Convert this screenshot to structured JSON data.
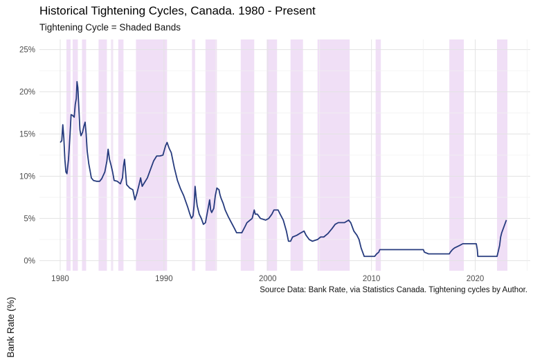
{
  "chart_data": {
    "type": "line",
    "title": "Historical Tightening Cycles, Canada. 1980 - Present",
    "subtitle": "Tightening Cycle = Shaded Bands",
    "caption": "Source Data: Bank Rate, via Statistics Canada. Tightening cycles by Author.",
    "xlabel": "",
    "ylabel": "Bank Rate (%)",
    "xlim": [
      1978.0,
      2025.3
    ],
    "ylim": [
      -1.2,
      26.2
    ],
    "x_ticks": [
      1980,
      1990,
      2000,
      2010,
      2020
    ],
    "x_tick_labels": [
      "1980",
      "1990",
      "2000",
      "2010",
      "2020"
    ],
    "y_ticks": [
      0,
      5,
      10,
      15,
      20,
      25
    ],
    "y_tick_labels": [
      "0%",
      "5%",
      "10%",
      "15%",
      "20%",
      "25%"
    ],
    "grid": true,
    "line_color": "#253a7d",
    "band_color": "#e9d2f2",
    "shaded_bands": [
      [
        1980.6,
        1981.0
      ],
      [
        1981.2,
        1981.7
      ],
      [
        1982.1,
        1982.5
      ],
      [
        1983.7,
        1984.5
      ],
      [
        1984.9,
        1985.1
      ],
      [
        1985.6,
        1986.1
      ],
      [
        1987.3,
        1990.3
      ],
      [
        1992.7,
        1993.0
      ],
      [
        1994.0,
        1995.1
      ],
      [
        1997.4,
        1998.7
      ],
      [
        1999.9,
        2000.9
      ],
      [
        2002.2,
        2003.4
      ],
      [
        2004.8,
        2007.9
      ],
      [
        2010.4,
        2010.9
      ],
      [
        2017.5,
        2018.9
      ],
      [
        2022.1,
        2023.1
      ]
    ],
    "series": [
      {
        "values": [
          [
            1980.0,
            14.0
          ],
          [
            1980.15,
            14.2
          ],
          [
            1980.25,
            16.1
          ],
          [
            1980.35,
            14.5
          ],
          [
            1980.45,
            12.0
          ],
          [
            1980.55,
            10.5
          ],
          [
            1980.65,
            10.3
          ],
          [
            1980.8,
            12.0
          ],
          [
            1980.95,
            15.0
          ],
          [
            1981.05,
            17.3
          ],
          [
            1981.2,
            17.2
          ],
          [
            1981.35,
            17.0
          ],
          [
            1981.45,
            18.5
          ],
          [
            1981.55,
            19.2
          ],
          [
            1981.62,
            21.2
          ],
          [
            1981.7,
            20.5
          ],
          [
            1981.8,
            18.0
          ],
          [
            1981.9,
            15.5
          ],
          [
            1982.0,
            14.8
          ],
          [
            1982.15,
            15.2
          ],
          [
            1982.3,
            16.0
          ],
          [
            1982.4,
            16.4
          ],
          [
            1982.5,
            15.0
          ],
          [
            1982.6,
            13.0
          ],
          [
            1982.75,
            11.5
          ],
          [
            1982.9,
            10.5
          ],
          [
            1983.0,
            9.8
          ],
          [
            1983.2,
            9.5
          ],
          [
            1983.5,
            9.4
          ],
          [
            1983.8,
            9.4
          ],
          [
            1984.0,
            9.7
          ],
          [
            1984.3,
            10.5
          ],
          [
            1984.5,
            11.8
          ],
          [
            1984.62,
            13.2
          ],
          [
            1984.75,
            12.0
          ],
          [
            1984.9,
            11.3
          ],
          [
            1985.05,
            10.5
          ],
          [
            1985.2,
            9.5
          ],
          [
            1985.5,
            9.4
          ],
          [
            1985.8,
            9.1
          ],
          [
            1986.0,
            9.8
          ],
          [
            1986.1,
            11.2
          ],
          [
            1986.2,
            12.0
          ],
          [
            1986.3,
            10.5
          ],
          [
            1986.4,
            9.0
          ],
          [
            1986.7,
            8.6
          ],
          [
            1987.0,
            8.4
          ],
          [
            1987.2,
            7.2
          ],
          [
            1987.4,
            8.0
          ],
          [
            1987.6,
            9.0
          ],
          [
            1987.75,
            9.8
          ],
          [
            1987.9,
            8.8
          ],
          [
            1988.1,
            9.2
          ],
          [
            1988.4,
            9.8
          ],
          [
            1988.7,
            10.8
          ],
          [
            1989.0,
            11.8
          ],
          [
            1989.3,
            12.4
          ],
          [
            1989.6,
            12.4
          ],
          [
            1989.9,
            12.5
          ],
          [
            1990.15,
            13.6
          ],
          [
            1990.3,
            14.0
          ],
          [
            1990.5,
            13.3
          ],
          [
            1990.7,
            12.8
          ],
          [
            1991.0,
            11.0
          ],
          [
            1991.3,
            9.5
          ],
          [
            1991.6,
            8.5
          ],
          [
            1991.9,
            7.7
          ],
          [
            1992.1,
            7.0
          ],
          [
            1992.3,
            6.3
          ],
          [
            1992.5,
            5.5
          ],
          [
            1992.65,
            5.0
          ],
          [
            1992.8,
            5.3
          ],
          [
            1992.9,
            6.5
          ],
          [
            1993.0,
            8.8
          ],
          [
            1993.1,
            7.5
          ],
          [
            1993.2,
            6.5
          ],
          [
            1993.4,
            5.5
          ],
          [
            1993.6,
            5.0
          ],
          [
            1993.8,
            4.3
          ],
          [
            1994.0,
            4.5
          ],
          [
            1994.15,
            5.5
          ],
          [
            1994.3,
            6.5
          ],
          [
            1994.4,
            7.2
          ],
          [
            1994.5,
            6.0
          ],
          [
            1994.6,
            5.7
          ],
          [
            1994.8,
            6.2
          ],
          [
            1994.95,
            7.7
          ],
          [
            1995.1,
            8.6
          ],
          [
            1995.3,
            8.4
          ],
          [
            1995.4,
            7.8
          ],
          [
            1995.5,
            7.4
          ],
          [
            1995.7,
            6.8
          ],
          [
            1995.9,
            6.0
          ],
          [
            1996.2,
            5.2
          ],
          [
            1996.5,
            4.5
          ],
          [
            1996.8,
            3.8
          ],
          [
            1997.0,
            3.3
          ],
          [
            1997.5,
            3.3
          ],
          [
            1997.8,
            4.0
          ],
          [
            1998.0,
            4.5
          ],
          [
            1998.5,
            5.0
          ],
          [
            1998.7,
            6.0
          ],
          [
            1998.8,
            5.5
          ],
          [
            1999.0,
            5.5
          ],
          [
            1999.3,
            5.0
          ],
          [
            1999.8,
            4.8
          ],
          [
            2000.1,
            5.0
          ],
          [
            2000.4,
            5.5
          ],
          [
            2000.6,
            6.0
          ],
          [
            2001.0,
            6.0
          ],
          [
            2001.2,
            5.5
          ],
          [
            2001.5,
            4.8
          ],
          [
            2001.8,
            3.5
          ],
          [
            2002.0,
            2.3
          ],
          [
            2002.2,
            2.3
          ],
          [
            2002.4,
            2.8
          ],
          [
            2002.8,
            3.0
          ],
          [
            2003.2,
            3.3
          ],
          [
            2003.5,
            3.5
          ],
          [
            2003.7,
            3.0
          ],
          [
            2004.0,
            2.5
          ],
          [
            2004.3,
            2.3
          ],
          [
            2004.8,
            2.5
          ],
          [
            2005.1,
            2.8
          ],
          [
            2005.4,
            2.8
          ],
          [
            2005.8,
            3.2
          ],
          [
            2006.2,
            3.8
          ],
          [
            2006.5,
            4.3
          ],
          [
            2006.8,
            4.5
          ],
          [
            2007.4,
            4.5
          ],
          [
            2007.8,
            4.8
          ],
          [
            2008.0,
            4.5
          ],
          [
            2008.3,
            3.5
          ],
          [
            2008.6,
            3.0
          ],
          [
            2008.8,
            2.5
          ],
          [
            2009.0,
            1.5
          ],
          [
            2009.3,
            0.5
          ],
          [
            2010.3,
            0.5
          ],
          [
            2010.5,
            0.8
          ],
          [
            2010.7,
            1.0
          ],
          [
            2010.8,
            1.3
          ],
          [
            2015.0,
            1.3
          ],
          [
            2015.1,
            1.0
          ],
          [
            2015.5,
            0.8
          ],
          [
            2017.5,
            0.8
          ],
          [
            2017.6,
            1.0
          ],
          [
            2017.8,
            1.3
          ],
          [
            2018.0,
            1.5
          ],
          [
            2018.5,
            1.8
          ],
          [
            2018.8,
            2.0
          ],
          [
            2020.1,
            2.0
          ],
          [
            2020.2,
            1.3
          ],
          [
            2020.25,
            0.5
          ],
          [
            2022.1,
            0.5
          ],
          [
            2022.2,
            1.0
          ],
          [
            2022.35,
            1.8
          ],
          [
            2022.45,
            2.8
          ],
          [
            2022.55,
            3.3
          ],
          [
            2022.7,
            3.8
          ],
          [
            2022.85,
            4.3
          ],
          [
            2023.0,
            4.8
          ]
        ]
      }
    ]
  }
}
